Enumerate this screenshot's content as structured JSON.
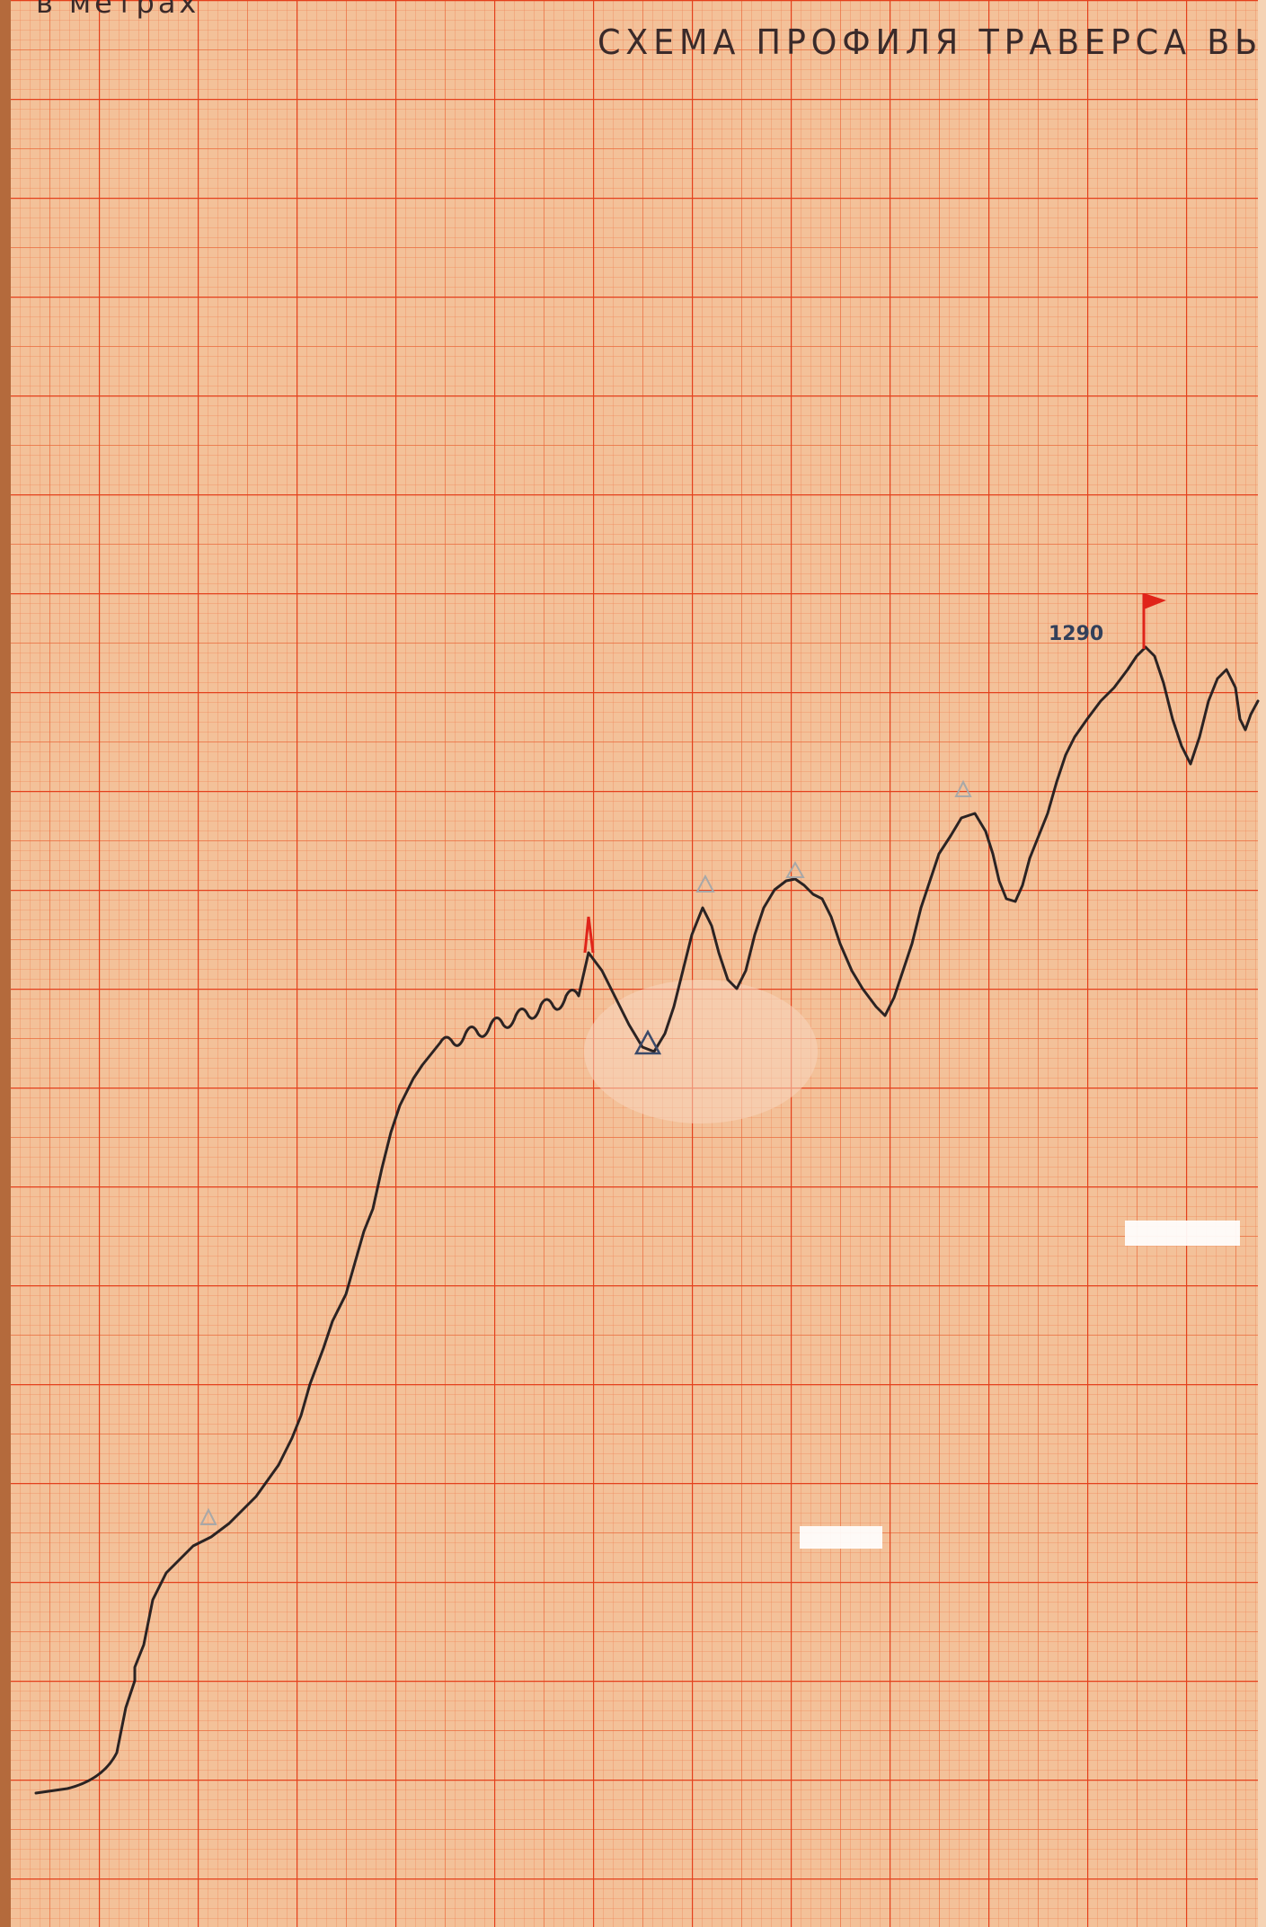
{
  "document": {
    "header_fragment": "в метрах",
    "title": "СХЕМА ПРОФИЛЯ ТРАВЕРСА ВЬ"
  },
  "profile": {
    "summit_label": "1290"
  },
  "colors": {
    "paper": "#f3c199",
    "grid_minor": "#ef8a5c",
    "grid_major": "#e4401c",
    "ink": "#2b2323",
    "flag": "#e0241a"
  },
  "icons": [
    "summit-flag-icon",
    "camp-triangle-icon"
  ]
}
